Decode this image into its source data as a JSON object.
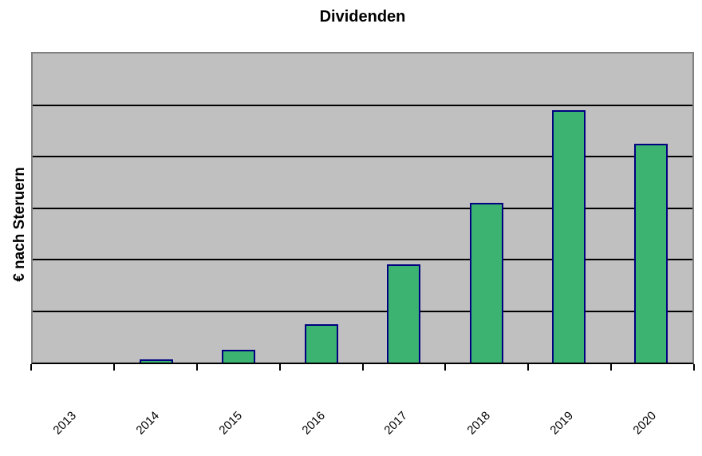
{
  "chart_data": {
    "type": "bar",
    "title": "Dividenden",
    "ylabel": "€ nach Steruern",
    "xlabel": "",
    "categories": [
      "2013",
      "2014",
      "2015",
      "2016",
      "2017",
      "2018",
      "2019",
      "2020"
    ],
    "values": [
      0,
      0.06,
      0.25,
      0.75,
      1.9,
      3.1,
      4.9,
      4.25
    ],
    "value_note": "y-axis has no visible numeric tick labels; values estimated in gridline-interval units read from the plot",
    "ylim": [
      0,
      6
    ],
    "y_tick_labels": [],
    "gridline_count": 5,
    "grid": "horizontal",
    "legend_position": "none",
    "x_label_rotation_deg": -45
  },
  "colors": {
    "chart_background": "#FFFFFF",
    "plot_background": "#C0C0C0",
    "plot_border": "#808080",
    "gridline": "#000000",
    "axis_line": "#000000",
    "bar_fill": "#3CB371",
    "bar_border": "#000080",
    "text": "#000000"
  }
}
